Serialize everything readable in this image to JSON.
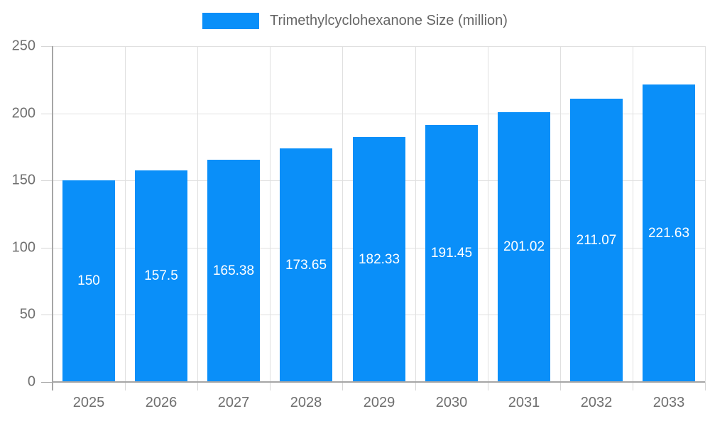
{
  "legend": {
    "label": "Trimethylcyclohexanone Size (million)",
    "swatch_color": "#0a8ff9"
  },
  "chart_data": {
    "type": "bar",
    "title": "Trimethylcyclohexanone Size (million)",
    "categories": [
      "2025",
      "2026",
      "2027",
      "2028",
      "2029",
      "2030",
      "2031",
      "2032",
      "2033"
    ],
    "values": [
      150,
      157.5,
      165.38,
      173.65,
      182.33,
      191.45,
      201.02,
      211.07,
      221.63
    ],
    "value_labels": [
      "150",
      "157.5",
      "165.38",
      "173.65",
      "182.33",
      "191.45",
      "201.02",
      "211.07",
      "221.63"
    ],
    "xlabel": "",
    "ylabel": "",
    "ylim": [
      0,
      250
    ],
    "yticks": [
      0,
      50,
      100,
      150,
      200,
      250
    ],
    "grid": true,
    "legend_position": "top"
  },
  "colors": {
    "bar": "#0a8ff9",
    "bar_label": "#ffffff",
    "grid": "#e0e0e0",
    "axis": "#a6a6a6",
    "tick": "#d6d6d6",
    "tick_text": "#6f6f6f",
    "legend_text": "#666666"
  }
}
